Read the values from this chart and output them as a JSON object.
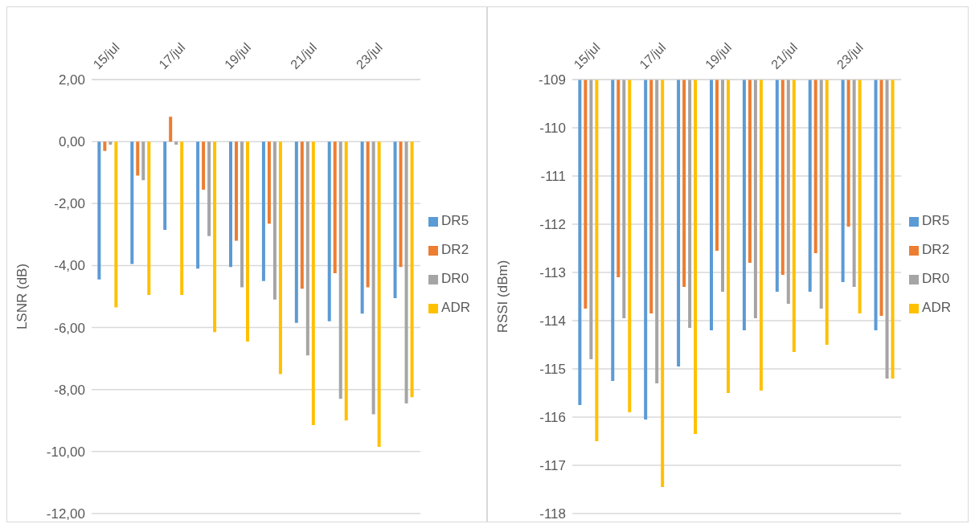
{
  "chart_data": [
    {
      "type": "bar",
      "ylabel": "LSNR (dB)",
      "categories": [
        "15/jul",
        null,
        "17/jul",
        null,
        "19/jul",
        null,
        "21/jul",
        null,
        "23/jul",
        null
      ],
      "series": [
        {
          "name": "DR5",
          "color": "#5b9bd5",
          "values": [
            -4.45,
            -3.95,
            -2.85,
            -4.1,
            -4.05,
            -4.5,
            -5.85,
            -5.8,
            -5.55,
            -5.05
          ]
        },
        {
          "name": "DR2",
          "color": "#ed7d31",
          "values": [
            -0.3,
            -1.1,
            0.8,
            -1.55,
            -3.2,
            -2.65,
            -4.75,
            -4.25,
            -4.7,
            -4.05
          ]
        },
        {
          "name": "DR0",
          "color": "#a5a5a5",
          "values": [
            -0.1,
            -1.25,
            -0.1,
            -3.05,
            -4.7,
            -5.1,
            -6.9,
            -8.3,
            -8.8,
            -8.45
          ]
        },
        {
          "name": "ADR",
          "color": "#ffc000",
          "values": [
            -5.35,
            -4.95,
            -4.95,
            -6.15,
            -6.45,
            -7.5,
            -9.15,
            -9.0,
            -9.85,
            -8.25
          ]
        }
      ],
      "ylim": [
        -12,
        2
      ],
      "yticks": [
        {
          "value": 2,
          "label": "2,00"
        },
        {
          "value": 0,
          "label": "0,00"
        },
        {
          "value": -2,
          "label": "-2,00"
        },
        {
          "value": -4,
          "label": "-4,00"
        },
        {
          "value": -6,
          "label": "-6,00"
        },
        {
          "value": -8,
          "label": "-8,00"
        },
        {
          "value": -10,
          "label": "-10,00"
        },
        {
          "value": -12,
          "label": "-12,00"
        }
      ],
      "grid": "y",
      "legend": "right"
    },
    {
      "type": "bar",
      "ylabel": "RSSI (dBm)",
      "categories": [
        "15/jul",
        null,
        "17/jul",
        null,
        "19/jul",
        null,
        "21/jul",
        null,
        "23/jul",
        null
      ],
      "series": [
        {
          "name": "DR5",
          "color": "#5b9bd5",
          "values": [
            -115.75,
            -115.25,
            -116.05,
            -114.95,
            -114.2,
            -114.2,
            -113.4,
            -113.4,
            -113.2,
            -114.2
          ]
        },
        {
          "name": "DR2",
          "color": "#ed7d31",
          "values": [
            -113.75,
            -113.1,
            -113.85,
            -113.3,
            -112.55,
            -112.8,
            -113.05,
            -112.6,
            -112.05,
            -113.9
          ]
        },
        {
          "name": "DR0",
          "color": "#a5a5a5",
          "values": [
            -114.8,
            -113.95,
            -115.3,
            -114.15,
            -113.4,
            -113.95,
            -113.65,
            -113.75,
            -113.3,
            -115.2
          ]
        },
        {
          "name": "ADR",
          "color": "#ffc000",
          "values": [
            -116.5,
            -115.9,
            -117.45,
            -116.35,
            -115.5,
            -115.45,
            -114.65,
            -114.5,
            -113.85,
            -115.2
          ]
        }
      ],
      "ylim": [
        -118,
        -109
      ],
      "yticks": [
        -109,
        -110,
        -111,
        -112,
        -113,
        -114,
        -115,
        -116,
        -117,
        -118
      ],
      "grid": "y",
      "legend": "right"
    }
  ]
}
